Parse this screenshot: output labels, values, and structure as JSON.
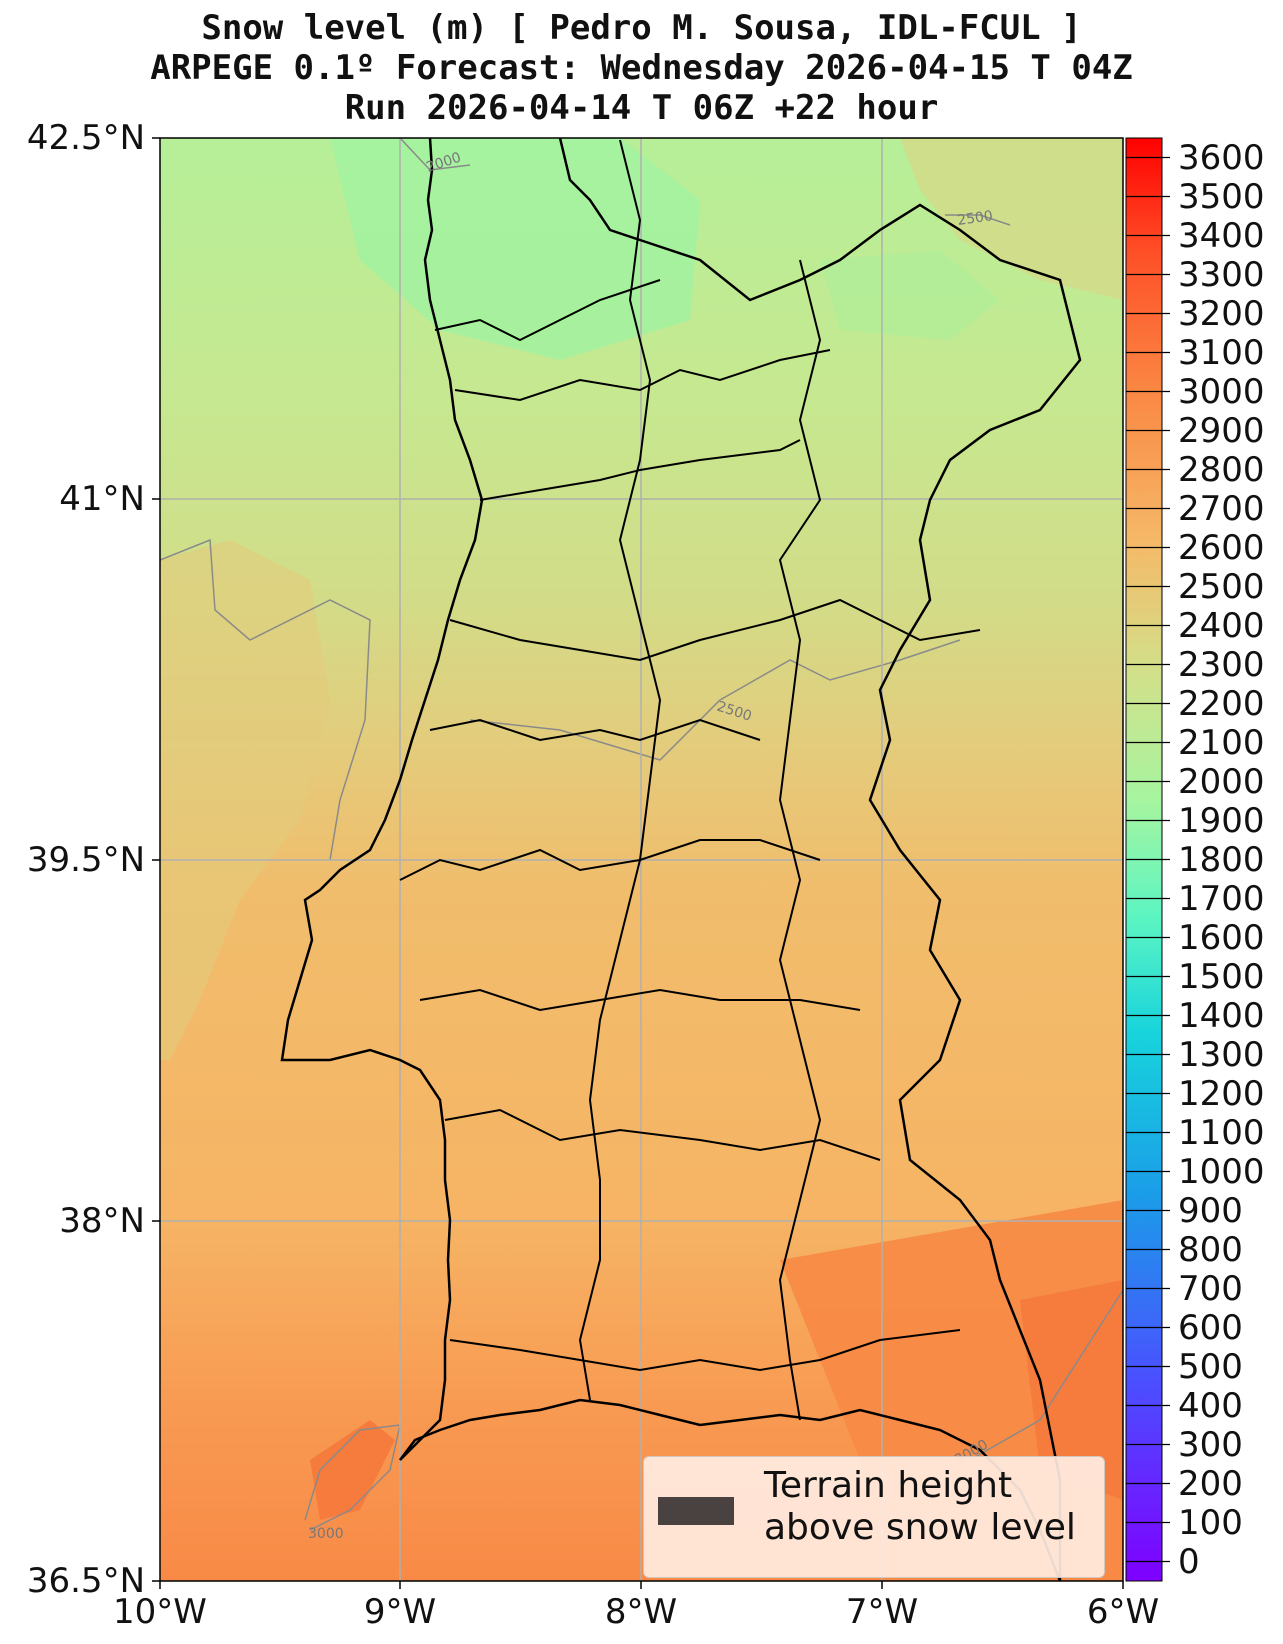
{
  "title": {
    "line1": "Snow level (m) [ Pedro M. Sousa, IDL-FCUL ]",
    "line2": "ARPEGE 0.1º Forecast: Wednesday 2026-04-15 T 04Z",
    "line3": "Run 2026-04-14 T 06Z +22 hour"
  },
  "axes": {
    "lat_labels": [
      "42.5°N",
      "41°N",
      "39.5°N",
      "38°N",
      "36.5°N"
    ],
    "lon_labels": [
      "10°W",
      "9°W",
      "8°W",
      "7°W",
      "6°W"
    ],
    "lat_values": [
      42.5,
      41,
      39.5,
      38,
      36.5
    ],
    "lon_values": [
      -10,
      -9,
      -8,
      -7,
      -6
    ]
  },
  "colorbar": {
    "ticks": [
      "3600",
      "3500",
      "3400",
      "3300",
      "3200",
      "3100",
      "3000",
      "2900",
      "2800",
      "2700",
      "2600",
      "2500",
      "2400",
      "2300",
      "2200",
      "2100",
      "2000",
      "1900",
      "1800",
      "1700",
      "1600",
      "1500",
      "1400",
      "1300",
      "1200",
      "1100",
      "1000",
      "900",
      "800",
      "700",
      "600",
      "500",
      "400",
      "300",
      "200",
      "100",
      "0"
    ],
    "range": [
      0,
      3700
    ],
    "colors": [
      "#7f00ff",
      "#3a7cff",
      "#10c4e6",
      "#4df0c0",
      "#a6f5a0",
      "#d4e08a",
      "#f5b968",
      "#fa8a45",
      "#ff4a20",
      "#ff0000"
    ]
  },
  "contour_labels": [
    "2000",
    "2500",
    "2500",
    "3000",
    "3000"
  ],
  "legend": {
    "label_line1": "Terrain height",
    "label_line2": "above snow level",
    "swatch_color": "#4a4240"
  },
  "colors": {
    "north_green": "#a6f5a0",
    "mid_yellow": "#d4da88",
    "south_orange": "#f5b968",
    "southeast_orange": "#fa8a45"
  }
}
